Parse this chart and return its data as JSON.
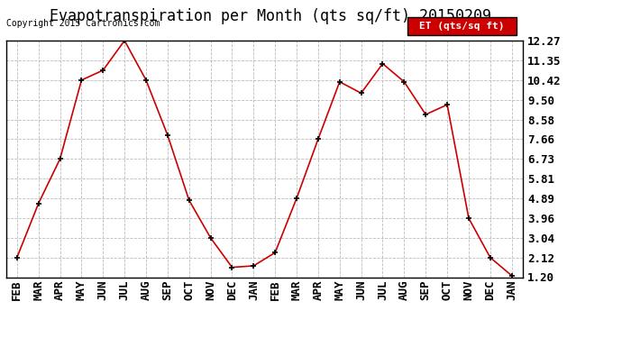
{
  "title": "Evapotranspiration per Month (qts sq/ft) 20150209",
  "copyright": "Copyright 2015 Cartronics.com",
  "legend_label": "ET (qts/sq ft)",
  "x_labels": [
    "FEB",
    "MAR",
    "APR",
    "MAY",
    "JUN",
    "JUL",
    "AUG",
    "SEP",
    "OCT",
    "NOV",
    "DEC",
    "JAN",
    "FEB",
    "MAR",
    "APR",
    "MAY",
    "JUN",
    "JUL",
    "AUG",
    "SEP",
    "OCT",
    "NOV",
    "DEC",
    "JAN"
  ],
  "y_values": [
    2.12,
    4.65,
    6.73,
    10.42,
    10.88,
    12.27,
    10.42,
    7.85,
    4.8,
    3.04,
    1.66,
    1.73,
    2.35,
    4.89,
    7.66,
    10.34,
    9.81,
    11.19,
    10.34,
    8.81,
    9.27,
    3.96,
    2.12,
    1.27
  ],
  "y_ticks": [
    1.2,
    2.12,
    3.04,
    3.96,
    4.89,
    5.81,
    6.73,
    7.66,
    8.58,
    9.5,
    10.42,
    11.35,
    12.27
  ],
  "ylim": [
    1.2,
    12.27
  ],
  "line_color": "#cc0000",
  "marker": "+",
  "marker_color": "#000000",
  "grid_color": "#bbbbbb",
  "bg_color": "#ffffff",
  "title_fontsize": 12,
  "tick_fontsize": 9,
  "copyright_fontsize": 7,
  "legend_bg": "#cc0000",
  "legend_text_color": "#ffffff",
  "legend_fontsize": 8
}
